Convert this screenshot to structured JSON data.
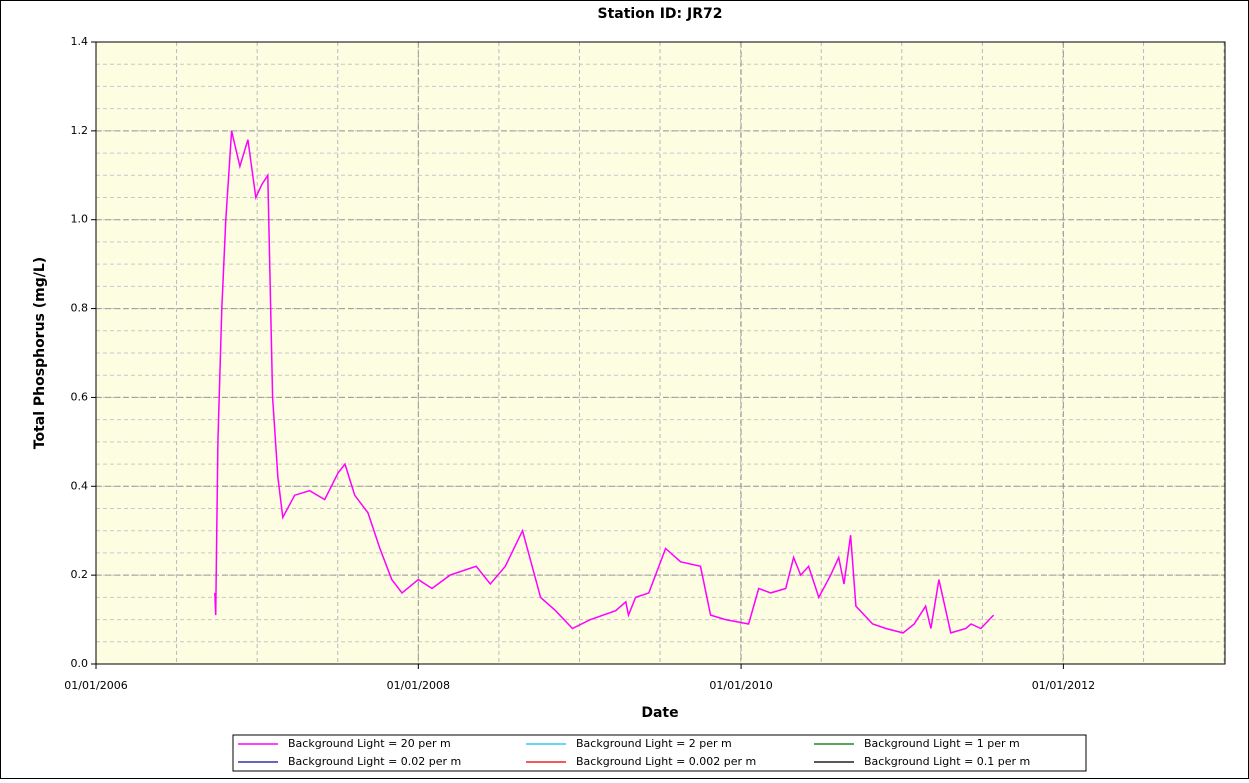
{
  "chart_data": {
    "type": "line",
    "title": "Station ID: JR72",
    "xlabel": "Date",
    "ylabel": "Total Phosphorus  (mg/L)",
    "x": [
      "09/27/2006",
      "09/29/2006",
      "10/04/2006",
      "10/13/2006",
      "10/22/2006",
      "11/04/2006",
      "11/23/2006",
      "12/11/2006",
      "12/29/2006",
      "01/12/2007",
      "01/25/2007",
      "02/05/2007",
      "02/17/2007",
      "02/28/2007",
      "03/27/2007",
      "04/30/2007",
      "06/03/2007",
      "07/03/2007",
      "07/19/2007",
      "08/10/2007",
      "09/09/2007",
      "10/06/2007",
      "11/02/2007",
      "11/25/2007",
      "01/01/2008",
      "02/01/2008",
      "03/13/2008",
      "05/11/2008",
      "06/12/2008",
      "07/16/2008",
      "08/24/2008",
      "10/04/2008",
      "11/07/2008",
      "12/15/2008",
      "01/25/2009",
      "03/23/2009",
      "04/15/2009",
      "04/21/2009",
      "05/07/2009",
      "06/06/2009",
      "07/14/2009",
      "08/17/2009",
      "10/01/2009",
      "10/24/2009",
      "11/27/2009",
      "01/18/2010",
      "02/10/2010",
      "03/09/2010",
      "04/12/2010",
      "04/30/2010",
      "05/16/2010",
      "06/03/2010",
      "06/26/2010",
      "07/23/2010",
      "08/10/2010",
      "08/22/2010",
      "09/06/2010",
      "09/18/2010",
      "10/26/2010",
      "11/25/2010",
      "01/03/2011",
      "01/28/2011",
      "02/23/2011",
      "03/07/2011",
      "03/25/2011",
      "04/21/2011",
      "05/25/2011",
      "06/06/2011",
      "06/28/2011",
      "07/27/2011"
    ],
    "series": [
      {
        "name": "Background Light = 20 per m",
        "color": "#ff00ff",
        "values": [
          0.16,
          0.11,
          0.5,
          0.8,
          1.0,
          1.2,
          1.12,
          1.18,
          1.05,
          1.08,
          1.1,
          0.6,
          0.42,
          0.33,
          0.38,
          0.39,
          0.37,
          0.43,
          0.45,
          0.38,
          0.34,
          0.26,
          0.19,
          0.16,
          0.19,
          0.17,
          0.2,
          0.22,
          0.18,
          0.22,
          0.3,
          0.15,
          0.12,
          0.08,
          0.1,
          0.12,
          0.14,
          0.11,
          0.15,
          0.16,
          0.26,
          0.23,
          0.22,
          0.11,
          0.1,
          0.09,
          0.17,
          0.16,
          0.17,
          0.24,
          0.2,
          0.22,
          0.15,
          0.2,
          0.24,
          0.18,
          0.29,
          0.13,
          0.09,
          0.08,
          0.07,
          0.09,
          0.13,
          0.08,
          0.19,
          0.07,
          0.08,
          0.09,
          0.08,
          0.11
        ]
      },
      {
        "name": "Background Light = 2 per m",
        "color": "#33ccee",
        "values": [
          null,
          null,
          null,
          null,
          null,
          null,
          null,
          null,
          null,
          null,
          null,
          null,
          null,
          null,
          null,
          null,
          null,
          null,
          null,
          null,
          null,
          null,
          null,
          null,
          null,
          null,
          null,
          null,
          null,
          null,
          null,
          null,
          null,
          null,
          null,
          null,
          null,
          null,
          null,
          null,
          null,
          null,
          null,
          null,
          null,
          null,
          null,
          null,
          null,
          null,
          null,
          null,
          null,
          null,
          null,
          null,
          null,
          null,
          null,
          null,
          null,
          null,
          null,
          null,
          null,
          null,
          null,
          null,
          null,
          null
        ]
      },
      {
        "name": "Background Light = 1 per m",
        "color": "#228822",
        "values": [
          null,
          null,
          null,
          null,
          null,
          null,
          null,
          null,
          null,
          null,
          null,
          null,
          null,
          null,
          null,
          null,
          null,
          null,
          null,
          null,
          null,
          null,
          null,
          null,
          null,
          null,
          null,
          null,
          null,
          null,
          null,
          null,
          null,
          null,
          null,
          null,
          null,
          null,
          null,
          null,
          null,
          null,
          null,
          null,
          null,
          null,
          null,
          null,
          null,
          null,
          null,
          null,
          null,
          null,
          null,
          null,
          null,
          null,
          null,
          null,
          null,
          null,
          null,
          null,
          null,
          null,
          null,
          null,
          null,
          null
        ]
      },
      {
        "name": "Background Light = 0.02 per m",
        "color": "#3333aa",
        "values": [
          null,
          null,
          null,
          null,
          null,
          null,
          null,
          null,
          null,
          null,
          null,
          null,
          null,
          null,
          null,
          null,
          null,
          null,
          null,
          null,
          null,
          null,
          null,
          null,
          null,
          null,
          null,
          null,
          null,
          null,
          null,
          null,
          null,
          null,
          null,
          null,
          null,
          null,
          null,
          null,
          null,
          null,
          null,
          null,
          null,
          null,
          null,
          null,
          null,
          null,
          null,
          null,
          null,
          null,
          null,
          null,
          null,
          null,
          null,
          null,
          null,
          null,
          null,
          null,
          null,
          null,
          null,
          null,
          null,
          null
        ]
      },
      {
        "name": "Background Light = 0.002 per m",
        "color": "#ee2222",
        "values": [
          null,
          null,
          null,
          null,
          null,
          null,
          null,
          null,
          null,
          null,
          null,
          null,
          null,
          null,
          null,
          null,
          null,
          null,
          null,
          null,
          null,
          null,
          null,
          null,
          null,
          null,
          null,
          null,
          null,
          null,
          null,
          null,
          null,
          null,
          null,
          null,
          null,
          null,
          null,
          null,
          null,
          null,
          null,
          null,
          null,
          null,
          null,
          null,
          null,
          null,
          null,
          null,
          null,
          null,
          null,
          null,
          null,
          null,
          null,
          null,
          null,
          null,
          null,
          null,
          null,
          null,
          null,
          null,
          null,
          null
        ]
      },
      {
        "name": "Background Light = 0.1 per m",
        "color": "#222222",
        "values": [
          null,
          null,
          null,
          null,
          null,
          null,
          null,
          null,
          null,
          null,
          null,
          null,
          null,
          null,
          null,
          null,
          null,
          null,
          null,
          null,
          null,
          null,
          null,
          null,
          null,
          null,
          null,
          null,
          null,
          null,
          null,
          null,
          null,
          null,
          null,
          null,
          null,
          null,
          null,
          null,
          null,
          null,
          null,
          null,
          null,
          null,
          null,
          null,
          null,
          null,
          null,
          null,
          null,
          null,
          null,
          null,
          null,
          null,
          null,
          null,
          null,
          null,
          null,
          null,
          null,
          null,
          null,
          null,
          null,
          null
        ]
      }
    ],
    "xlim": [
      "01/01/2006",
      "01/01/2013"
    ],
    "xticks": [
      "01/01/2006",
      "01/01/2008",
      "01/01/2010",
      "01/01/2012"
    ],
    "ylim": [
      0,
      1.4
    ],
    "yticks": [
      {
        "value": 0,
        "label": "0.0"
      },
      0.2,
      0.4,
      0.6,
      0.8,
      {
        "value": 1,
        "label": "1.0"
      },
      1.2,
      1.4
    ],
    "grid": true,
    "legend": "bottom",
    "background": "#fdfde1"
  }
}
